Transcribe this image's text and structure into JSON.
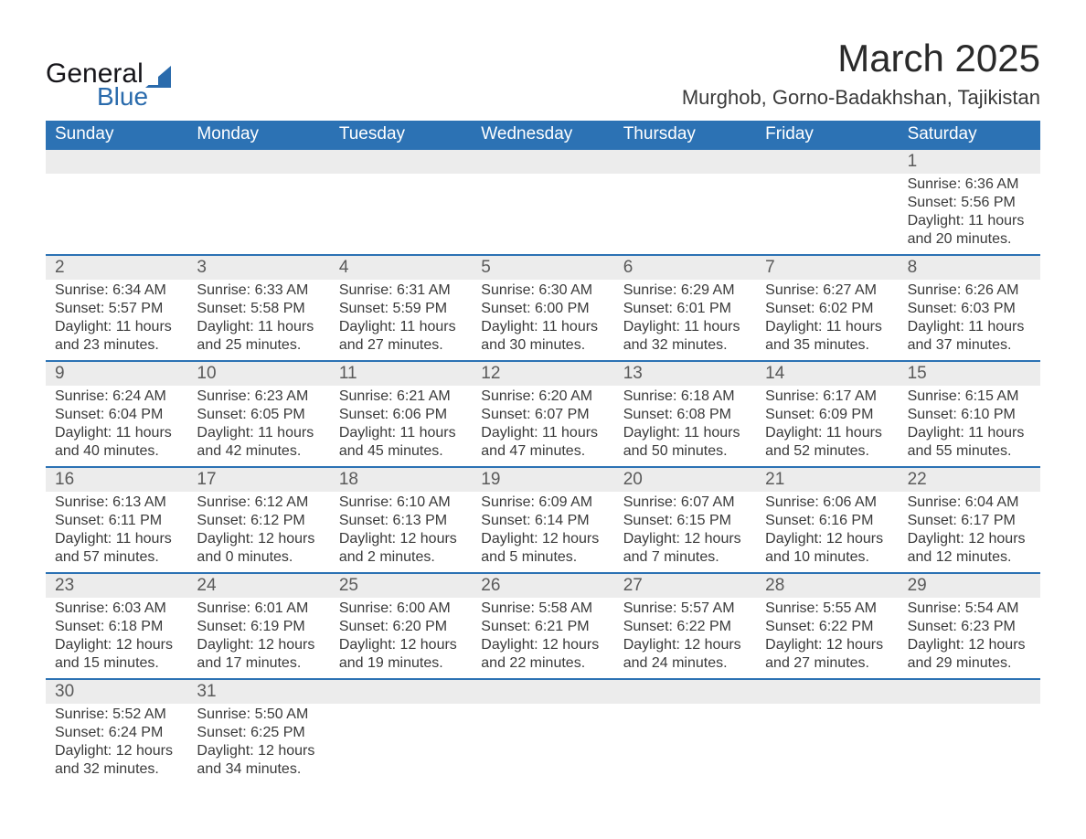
{
  "brand": {
    "word1": "General",
    "word2": "Blue",
    "triangle_color": "#2a6bac"
  },
  "title": "March 2025",
  "location": "Murghob, Gorno-Badakhshan, Tajikistan",
  "theme": {
    "header_bg": "#2c72b4",
    "header_fg": "#ffffff",
    "daynum_bg": "#ececec",
    "rule_color": "#2c72b4",
    "text_color": "#3a3a3a",
    "page_bg": "#ffffff",
    "title_fontsize": 42,
    "location_fontsize": 22,
    "dayname_fontsize": 19,
    "cell_fontsize": 16
  },
  "day_names": [
    "Sunday",
    "Monday",
    "Tuesday",
    "Wednesday",
    "Thursday",
    "Friday",
    "Saturday"
  ],
  "weeks": [
    [
      {},
      {},
      {},
      {},
      {},
      {},
      {
        "d": "1",
        "sr": "Sunrise: 6:36 AM",
        "ss": "Sunset: 5:56 PM",
        "dl": "Daylight: 11 hours and 20 minutes."
      }
    ],
    [
      {
        "d": "2",
        "sr": "Sunrise: 6:34 AM",
        "ss": "Sunset: 5:57 PM",
        "dl": "Daylight: 11 hours and 23 minutes."
      },
      {
        "d": "3",
        "sr": "Sunrise: 6:33 AM",
        "ss": "Sunset: 5:58 PM",
        "dl": "Daylight: 11 hours and 25 minutes."
      },
      {
        "d": "4",
        "sr": "Sunrise: 6:31 AM",
        "ss": "Sunset: 5:59 PM",
        "dl": "Daylight: 11 hours and 27 minutes."
      },
      {
        "d": "5",
        "sr": "Sunrise: 6:30 AM",
        "ss": "Sunset: 6:00 PM",
        "dl": "Daylight: 11 hours and 30 minutes."
      },
      {
        "d": "6",
        "sr": "Sunrise: 6:29 AM",
        "ss": "Sunset: 6:01 PM",
        "dl": "Daylight: 11 hours and 32 minutes."
      },
      {
        "d": "7",
        "sr": "Sunrise: 6:27 AM",
        "ss": "Sunset: 6:02 PM",
        "dl": "Daylight: 11 hours and 35 minutes."
      },
      {
        "d": "8",
        "sr": "Sunrise: 6:26 AM",
        "ss": "Sunset: 6:03 PM",
        "dl": "Daylight: 11 hours and 37 minutes."
      }
    ],
    [
      {
        "d": "9",
        "sr": "Sunrise: 6:24 AM",
        "ss": "Sunset: 6:04 PM",
        "dl": "Daylight: 11 hours and 40 minutes."
      },
      {
        "d": "10",
        "sr": "Sunrise: 6:23 AM",
        "ss": "Sunset: 6:05 PM",
        "dl": "Daylight: 11 hours and 42 minutes."
      },
      {
        "d": "11",
        "sr": "Sunrise: 6:21 AM",
        "ss": "Sunset: 6:06 PM",
        "dl": "Daylight: 11 hours and 45 minutes."
      },
      {
        "d": "12",
        "sr": "Sunrise: 6:20 AM",
        "ss": "Sunset: 6:07 PM",
        "dl": "Daylight: 11 hours and 47 minutes."
      },
      {
        "d": "13",
        "sr": "Sunrise: 6:18 AM",
        "ss": "Sunset: 6:08 PM",
        "dl": "Daylight: 11 hours and 50 minutes."
      },
      {
        "d": "14",
        "sr": "Sunrise: 6:17 AM",
        "ss": "Sunset: 6:09 PM",
        "dl": "Daylight: 11 hours and 52 minutes."
      },
      {
        "d": "15",
        "sr": "Sunrise: 6:15 AM",
        "ss": "Sunset: 6:10 PM",
        "dl": "Daylight: 11 hours and 55 minutes."
      }
    ],
    [
      {
        "d": "16",
        "sr": "Sunrise: 6:13 AM",
        "ss": "Sunset: 6:11 PM",
        "dl": "Daylight: 11 hours and 57 minutes."
      },
      {
        "d": "17",
        "sr": "Sunrise: 6:12 AM",
        "ss": "Sunset: 6:12 PM",
        "dl": "Daylight: 12 hours and 0 minutes."
      },
      {
        "d": "18",
        "sr": "Sunrise: 6:10 AM",
        "ss": "Sunset: 6:13 PM",
        "dl": "Daylight: 12 hours and 2 minutes."
      },
      {
        "d": "19",
        "sr": "Sunrise: 6:09 AM",
        "ss": "Sunset: 6:14 PM",
        "dl": "Daylight: 12 hours and 5 minutes."
      },
      {
        "d": "20",
        "sr": "Sunrise: 6:07 AM",
        "ss": "Sunset: 6:15 PM",
        "dl": "Daylight: 12 hours and 7 minutes."
      },
      {
        "d": "21",
        "sr": "Sunrise: 6:06 AM",
        "ss": "Sunset: 6:16 PM",
        "dl": "Daylight: 12 hours and 10 minutes."
      },
      {
        "d": "22",
        "sr": "Sunrise: 6:04 AM",
        "ss": "Sunset: 6:17 PM",
        "dl": "Daylight: 12 hours and 12 minutes."
      }
    ],
    [
      {
        "d": "23",
        "sr": "Sunrise: 6:03 AM",
        "ss": "Sunset: 6:18 PM",
        "dl": "Daylight: 12 hours and 15 minutes."
      },
      {
        "d": "24",
        "sr": "Sunrise: 6:01 AM",
        "ss": "Sunset: 6:19 PM",
        "dl": "Daylight: 12 hours and 17 minutes."
      },
      {
        "d": "25",
        "sr": "Sunrise: 6:00 AM",
        "ss": "Sunset: 6:20 PM",
        "dl": "Daylight: 12 hours and 19 minutes."
      },
      {
        "d": "26",
        "sr": "Sunrise: 5:58 AM",
        "ss": "Sunset: 6:21 PM",
        "dl": "Daylight: 12 hours and 22 minutes."
      },
      {
        "d": "27",
        "sr": "Sunrise: 5:57 AM",
        "ss": "Sunset: 6:22 PM",
        "dl": "Daylight: 12 hours and 24 minutes."
      },
      {
        "d": "28",
        "sr": "Sunrise: 5:55 AM",
        "ss": "Sunset: 6:22 PM",
        "dl": "Daylight: 12 hours and 27 minutes."
      },
      {
        "d": "29",
        "sr": "Sunrise: 5:54 AM",
        "ss": "Sunset: 6:23 PM",
        "dl": "Daylight: 12 hours and 29 minutes."
      }
    ],
    [
      {
        "d": "30",
        "sr": "Sunrise: 5:52 AM",
        "ss": "Sunset: 6:24 PM",
        "dl": "Daylight: 12 hours and 32 minutes."
      },
      {
        "d": "31",
        "sr": "Sunrise: 5:50 AM",
        "ss": "Sunset: 6:25 PM",
        "dl": "Daylight: 12 hours and 34 minutes."
      },
      {},
      {},
      {},
      {},
      {}
    ]
  ]
}
